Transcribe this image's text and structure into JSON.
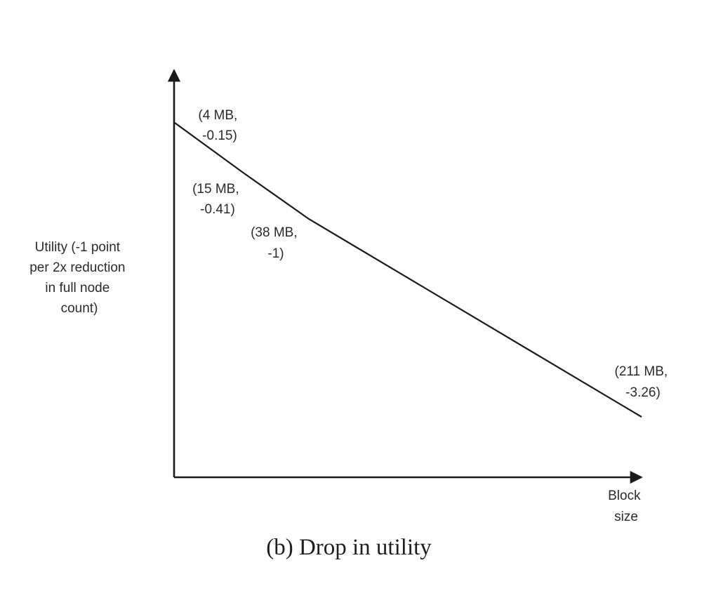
{
  "chart_data": {
    "type": "line",
    "ylabel": [
      "Utility (-1 point",
      "per 2x reduction",
      "in full node",
      "count)"
    ],
    "xlabel": [
      "Block",
      "size"
    ],
    "caption": "(b) Drop in utility",
    "series": [
      {
        "name": "utility",
        "x": [
          4,
          15,
          38,
          211
        ],
        "y": [
          -0.15,
          -0.41,
          -1,
          -3.26
        ]
      }
    ],
    "annotations": [
      {
        "lines": [
          "(4 MB,",
          "-0.15)"
        ]
      },
      {
        "lines": [
          "(15 MB,",
          "-0.41)"
        ]
      },
      {
        "lines": [
          "(38 MB,",
          "-1)"
        ]
      },
      {
        "lines": [
          "(211 MB,",
          "-3.26)"
        ]
      }
    ],
    "grid": false,
    "legend": "none"
  }
}
